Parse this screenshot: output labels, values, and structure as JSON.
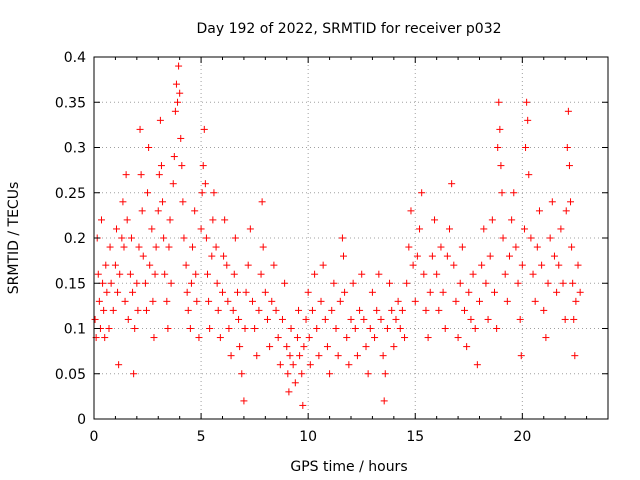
{
  "chart_data": {
    "type": "scatter",
    "title": "Day 192 of 2022, SRMTID for receiver p032",
    "xlabel": "GPS time / hours",
    "ylabel": "SRMTID / TECUs",
    "xlim": [
      0,
      24
    ],
    "ylim": [
      0,
      0.4
    ],
    "xticks": [
      0,
      5,
      10,
      15,
      20
    ],
    "xtick_labels": [
      "0",
      "5",
      "10",
      "15",
      "20"
    ],
    "yticks": [
      0,
      0.05,
      0.1,
      0.15,
      0.2,
      0.25,
      0.3,
      0.35,
      0.4
    ],
    "ytick_labels": [
      "0",
      "0.05",
      "0.1",
      "0.15",
      "0.2",
      "0.25",
      "0.3",
      "0.35",
      "0.4"
    ],
    "grid": true,
    "marker": "plus",
    "color": "#ff0000",
    "series": [
      {
        "name": "SRMTID",
        "points": [
          [
            0.05,
            0.11
          ],
          [
            0.1,
            0.09
          ],
          [
            0.15,
            0.2
          ],
          [
            0.2,
            0.16
          ],
          [
            0.25,
            0.13
          ],
          [
            0.3,
            0.1
          ],
          [
            0.35,
            0.22
          ],
          [
            0.4,
            0.15
          ],
          [
            0.45,
            0.12
          ],
          [
            0.5,
            0.09
          ],
          [
            0.55,
            0.17
          ],
          [
            0.6,
            0.14
          ],
          [
            0.7,
            0.1
          ],
          [
            0.75,
            0.19
          ],
          [
            0.8,
            0.15
          ],
          [
            0.9,
            0.12
          ],
          [
            1.0,
            0.17
          ],
          [
            1.05,
            0.21
          ],
          [
            1.1,
            0.14
          ],
          [
            1.15,
            0.06
          ],
          [
            1.2,
            0.16
          ],
          [
            1.3,
            0.2
          ],
          [
            1.35,
            0.24
          ],
          [
            1.4,
            0.19
          ],
          [
            1.45,
            0.13
          ],
          [
            1.5,
            0.27
          ],
          [
            1.55,
            0.22
          ],
          [
            1.6,
            0.11
          ],
          [
            1.7,
            0.16
          ],
          [
            1.75,
            0.2
          ],
          [
            1.8,
            0.14
          ],
          [
            1.85,
            0.05
          ],
          [
            1.9,
            0.1
          ],
          [
            2.0,
            0.15
          ],
          [
            2.05,
            0.12
          ],
          [
            2.1,
            0.19
          ],
          [
            2.15,
            0.32
          ],
          [
            2.2,
            0.27
          ],
          [
            2.25,
            0.23
          ],
          [
            2.3,
            0.18
          ],
          [
            2.4,
            0.15
          ],
          [
            2.45,
            0.12
          ],
          [
            2.5,
            0.25
          ],
          [
            2.55,
            0.3
          ],
          [
            2.6,
            0.17
          ],
          [
            2.7,
            0.21
          ],
          [
            2.75,
            0.13
          ],
          [
            2.8,
            0.09
          ],
          [
            2.85,
            0.16
          ],
          [
            2.9,
            0.19
          ],
          [
            3.0,
            0.23
          ],
          [
            3.05,
            0.27
          ],
          [
            3.1,
            0.33
          ],
          [
            3.15,
            0.28
          ],
          [
            3.2,
            0.24
          ],
          [
            3.25,
            0.2
          ],
          [
            3.3,
            0.16
          ],
          [
            3.4,
            0.13
          ],
          [
            3.45,
            0.1
          ],
          [
            3.5,
            0.19
          ],
          [
            3.55,
            0.22
          ],
          [
            3.6,
            0.15
          ],
          [
            3.7,
            0.26
          ],
          [
            3.75,
            0.29
          ],
          [
            3.8,
            0.34
          ],
          [
            3.85,
            0.37
          ],
          [
            3.9,
            0.35
          ],
          [
            3.95,
            0.39
          ],
          [
            4.0,
            0.36
          ],
          [
            4.05,
            0.31
          ],
          [
            4.1,
            0.28
          ],
          [
            4.15,
            0.24
          ],
          [
            4.2,
            0.2
          ],
          [
            4.3,
            0.17
          ],
          [
            4.35,
            0.14
          ],
          [
            4.4,
            0.12
          ],
          [
            4.5,
            0.1
          ],
          [
            4.55,
            0.15
          ],
          [
            4.6,
            0.19
          ],
          [
            4.7,
            0.23
          ],
          [
            4.75,
            0.16
          ],
          [
            4.8,
            0.13
          ],
          [
            4.9,
            0.09
          ],
          [
            5.0,
            0.21
          ],
          [
            5.05,
            0.25
          ],
          [
            5.1,
            0.28
          ],
          [
            5.15,
            0.32
          ],
          [
            5.2,
            0.26
          ],
          [
            5.25,
            0.2
          ],
          [
            5.3,
            0.16
          ],
          [
            5.35,
            0.13
          ],
          [
            5.4,
            0.1
          ],
          [
            5.5,
            0.18
          ],
          [
            5.55,
            0.22
          ],
          [
            5.6,
            0.25
          ],
          [
            5.7,
            0.19
          ],
          [
            5.75,
            0.15
          ],
          [
            5.8,
            0.12
          ],
          [
            5.9,
            0.09
          ],
          [
            6.0,
            0.14
          ],
          [
            6.05,
            0.18
          ],
          [
            6.1,
            0.22
          ],
          [
            6.2,
            0.17
          ],
          [
            6.25,
            0.13
          ],
          [
            6.3,
            0.1
          ],
          [
            6.4,
            0.07
          ],
          [
            6.5,
            0.12
          ],
          [
            6.55,
            0.16
          ],
          [
            6.6,
            0.2
          ],
          [
            6.7,
            0.14
          ],
          [
            6.75,
            0.11
          ],
          [
            6.8,
            0.08
          ],
          [
            6.9,
            0.05
          ],
          [
            7.0,
            0.02
          ],
          [
            7.05,
            0.1
          ],
          [
            7.1,
            0.14
          ],
          [
            7.2,
            0.17
          ],
          [
            7.3,
            0.21
          ],
          [
            7.4,
            0.13
          ],
          [
            7.5,
            0.1
          ],
          [
            7.6,
            0.07
          ],
          [
            7.7,
            0.12
          ],
          [
            7.8,
            0.16
          ],
          [
            7.85,
            0.24
          ],
          [
            7.9,
            0.19
          ],
          [
            8.0,
            0.14
          ],
          [
            8.1,
            0.11
          ],
          [
            8.2,
            0.08
          ],
          [
            8.3,
            0.13
          ],
          [
            8.4,
            0.17
          ],
          [
            8.5,
            0.12
          ],
          [
            8.6,
            0.09
          ],
          [
            8.7,
            0.06
          ],
          [
            8.8,
            0.11
          ],
          [
            8.9,
            0.15
          ],
          [
            9.0,
            0.08
          ],
          [
            9.05,
            0.05
          ],
          [
            9.1,
            0.03
          ],
          [
            9.15,
            0.07
          ],
          [
            9.2,
            0.1
          ],
          [
            9.3,
            0.06
          ],
          [
            9.4,
            0.04
          ],
          [
            9.5,
            0.09
          ],
          [
            9.55,
            0.12
          ],
          [
            9.6,
            0.07
          ],
          [
            9.7,
            0.05
          ],
          [
            9.75,
            0.015
          ],
          [
            9.8,
            0.08
          ],
          [
            9.9,
            0.11
          ],
          [
            10.0,
            0.14
          ],
          [
            10.05,
            0.09
          ],
          [
            10.1,
            0.06
          ],
          [
            10.2,
            0.12
          ],
          [
            10.3,
            0.16
          ],
          [
            10.4,
            0.1
          ],
          [
            10.5,
            0.07
          ],
          [
            10.6,
            0.13
          ],
          [
            10.7,
            0.17
          ],
          [
            10.8,
            0.11
          ],
          [
            10.9,
            0.08
          ],
          [
            11.0,
            0.05
          ],
          [
            11.1,
            0.12
          ],
          [
            11.2,
            0.15
          ],
          [
            11.3,
            0.1
          ],
          [
            11.4,
            0.07
          ],
          [
            11.5,
            0.13
          ],
          [
            11.6,
            0.2
          ],
          [
            11.65,
            0.18
          ],
          [
            11.7,
            0.14
          ],
          [
            11.8,
            0.09
          ],
          [
            11.9,
            0.06
          ],
          [
            12.0,
            0.11
          ],
          [
            12.1,
            0.15
          ],
          [
            12.2,
            0.1
          ],
          [
            12.3,
            0.07
          ],
          [
            12.4,
            0.12
          ],
          [
            12.5,
            0.16
          ],
          [
            12.6,
            0.11
          ],
          [
            12.7,
            0.08
          ],
          [
            12.8,
            0.05
          ],
          [
            12.9,
            0.1
          ],
          [
            13.0,
            0.14
          ],
          [
            13.1,
            0.09
          ],
          [
            13.2,
            0.12
          ],
          [
            13.3,
            0.16
          ],
          [
            13.4,
            0.11
          ],
          [
            13.5,
            0.07
          ],
          [
            13.55,
            0.02
          ],
          [
            13.6,
            0.05
          ],
          [
            13.7,
            0.1
          ],
          [
            13.8,
            0.15
          ],
          [
            13.9,
            0.12
          ],
          [
            14.0,
            0.08
          ],
          [
            14.1,
            0.11
          ],
          [
            14.2,
            0.13
          ],
          [
            14.3,
            0.1
          ],
          [
            14.4,
            0.12
          ],
          [
            14.5,
            0.09
          ],
          [
            14.6,
            0.15
          ],
          [
            14.7,
            0.19
          ],
          [
            14.8,
            0.23
          ],
          [
            14.9,
            0.17
          ],
          [
            15.0,
            0.13
          ],
          [
            15.1,
            0.18
          ],
          [
            15.2,
            0.21
          ],
          [
            15.3,
            0.25
          ],
          [
            15.4,
            0.16
          ],
          [
            15.5,
            0.12
          ],
          [
            15.6,
            0.09
          ],
          [
            15.7,
            0.14
          ],
          [
            15.8,
            0.18
          ],
          [
            15.9,
            0.22
          ],
          [
            16.0,
            0.16
          ],
          [
            16.1,
            0.12
          ],
          [
            16.2,
            0.19
          ],
          [
            16.3,
            0.14
          ],
          [
            16.4,
            0.1
          ],
          [
            16.5,
            0.18
          ],
          [
            16.6,
            0.21
          ],
          [
            16.7,
            0.26
          ],
          [
            16.8,
            0.17
          ],
          [
            16.9,
            0.13
          ],
          [
            17.0,
            0.09
          ],
          [
            17.1,
            0.15
          ],
          [
            17.2,
            0.19
          ],
          [
            17.3,
            0.12
          ],
          [
            17.4,
            0.08
          ],
          [
            17.5,
            0.14
          ],
          [
            17.6,
            0.11
          ],
          [
            17.7,
            0.16
          ],
          [
            17.8,
            0.1
          ],
          [
            17.9,
            0.06
          ],
          [
            18.0,
            0.13
          ],
          [
            18.1,
            0.17
          ],
          [
            18.2,
            0.21
          ],
          [
            18.3,
            0.15
          ],
          [
            18.4,
            0.11
          ],
          [
            18.5,
            0.18
          ],
          [
            18.6,
            0.22
          ],
          [
            18.7,
            0.14
          ],
          [
            18.8,
            0.1
          ],
          [
            18.85,
            0.3
          ],
          [
            18.9,
            0.35
          ],
          [
            18.95,
            0.32
          ],
          [
            19.0,
            0.28
          ],
          [
            19.05,
            0.25
          ],
          [
            19.1,
            0.2
          ],
          [
            19.2,
            0.16
          ],
          [
            19.3,
            0.13
          ],
          [
            19.4,
            0.18
          ],
          [
            19.5,
            0.22
          ],
          [
            19.6,
            0.25
          ],
          [
            19.7,
            0.19
          ],
          [
            19.8,
            0.15
          ],
          [
            19.9,
            0.11
          ],
          [
            19.95,
            0.07
          ],
          [
            20.0,
            0.17
          ],
          [
            20.1,
            0.21
          ],
          [
            20.15,
            0.3
          ],
          [
            20.2,
            0.35
          ],
          [
            20.25,
            0.33
          ],
          [
            20.3,
            0.27
          ],
          [
            20.4,
            0.2
          ],
          [
            20.5,
            0.16
          ],
          [
            20.6,
            0.13
          ],
          [
            20.7,
            0.19
          ],
          [
            20.8,
            0.23
          ],
          [
            20.9,
            0.17
          ],
          [
            21.0,
            0.12
          ],
          [
            21.1,
            0.09
          ],
          [
            21.2,
            0.15
          ],
          [
            21.3,
            0.2
          ],
          [
            21.4,
            0.24
          ],
          [
            21.5,
            0.18
          ],
          [
            21.6,
            0.14
          ],
          [
            21.7,
            0.17
          ],
          [
            21.8,
            0.21
          ],
          [
            21.9,
            0.15
          ],
          [
            22.0,
            0.11
          ],
          [
            22.05,
            0.23
          ],
          [
            22.1,
            0.3
          ],
          [
            22.15,
            0.34
          ],
          [
            22.2,
            0.28
          ],
          [
            22.25,
            0.24
          ],
          [
            22.3,
            0.19
          ],
          [
            22.35,
            0.15
          ],
          [
            22.4,
            0.11
          ],
          [
            22.45,
            0.07
          ],
          [
            22.5,
            0.13
          ],
          [
            22.6,
            0.17
          ],
          [
            22.7,
            0.14
          ]
        ]
      }
    ]
  }
}
